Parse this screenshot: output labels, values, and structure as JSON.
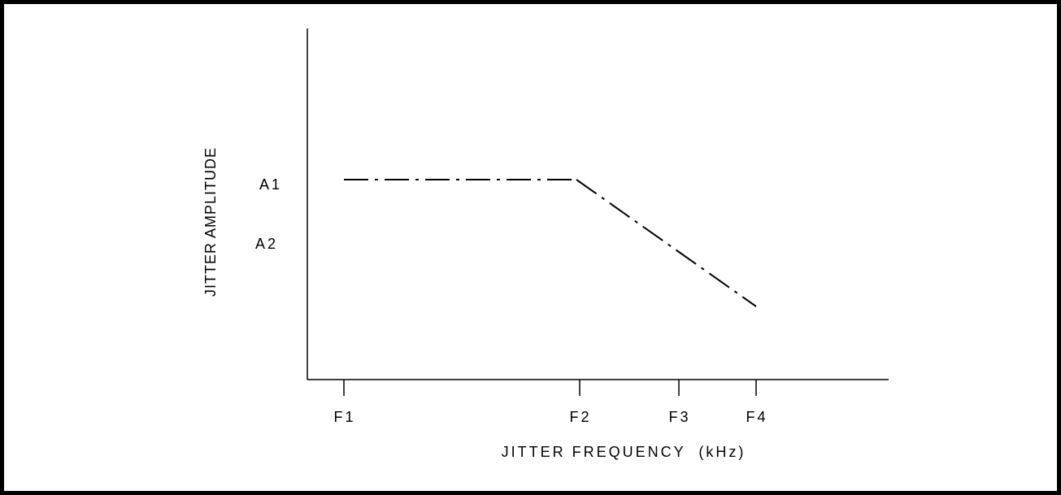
{
  "chart_data": {
    "type": "line",
    "title": "",
    "xlabel": "JITTER FREQUENCY  (kHz)",
    "ylabel": "JITTER AMPLITUDE",
    "x_ticks": [
      "F1",
      "F2",
      "F3",
      "F4"
    ],
    "y_ticks": [
      "A1",
      "A2"
    ],
    "series": [
      {
        "points": [
          {
            "x": "F1",
            "y": "A1"
          },
          {
            "x": "F2",
            "y": "A1"
          },
          {
            "x": "F4",
            "y": null
          }
        ],
        "line_style": "dash-dot",
        "color": "#000000"
      }
    ],
    "grid": false,
    "legend": "none"
  }
}
